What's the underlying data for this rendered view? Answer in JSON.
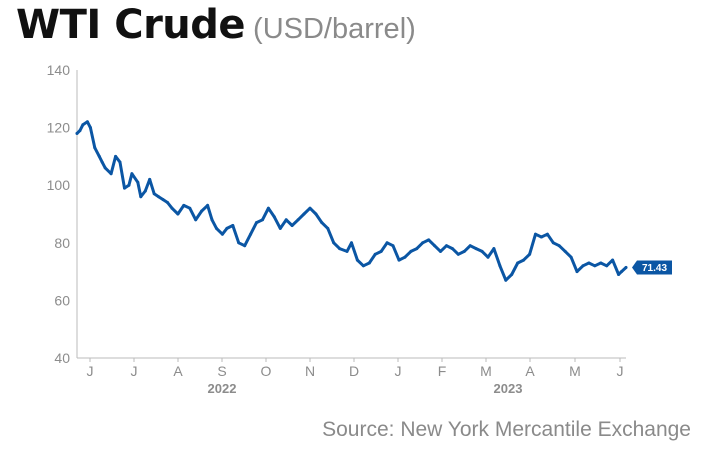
{
  "title": "WTI Crude",
  "subtitle": "(USD/barrel)",
  "source": "Source: New York Mercantile Exchange",
  "colors": {
    "line": "#0b56a4",
    "axis": "#bbbbbb",
    "text": "#8c8c8c",
    "title": "#111111"
  },
  "chart_data": {
    "type": "line",
    "title": "WTI Crude",
    "subtitle": "(USD/barrel)",
    "ylim": [
      40,
      140
    ],
    "yticks": [
      140,
      120,
      100,
      80,
      60,
      40
    ],
    "xticks": [
      "J",
      "J",
      "A",
      "S",
      "O",
      "N",
      "D",
      "J",
      "F",
      "M",
      "A",
      "M",
      "J"
    ],
    "year_labels": [
      "2022",
      "2023"
    ],
    "grid": false,
    "last_value_label": "71.43",
    "series": [
      {
        "x": [
          "2022-06-01",
          "2022-06-03",
          "2022-06-05",
          "2022-06-08",
          "2022-06-10",
          "2022-06-13",
          "2022-06-16",
          "2022-06-18",
          "2022-06-20",
          "2022-06-24",
          "2022-06-27",
          "2022-06-30",
          "2022-07-03",
          "2022-07-06",
          "2022-07-08",
          "2022-07-12",
          "2022-07-14",
          "2022-07-17",
          "2022-07-20",
          "2022-07-23",
          "2022-07-26",
          "2022-07-29",
          "2022-08-01",
          "2022-08-04",
          "2022-08-08",
          "2022-08-12",
          "2022-08-16",
          "2022-08-20",
          "2022-08-24",
          "2022-08-28",
          "2022-08-31",
          "2022-09-03",
          "2022-09-07",
          "2022-09-10",
          "2022-09-14",
          "2022-09-18",
          "2022-09-22",
          "2022-09-26",
          "2022-09-30",
          "2022-10-04",
          "2022-10-08",
          "2022-10-12",
          "2022-10-16",
          "2022-10-20",
          "2022-10-24",
          "2022-10-28",
          "2022-11-01",
          "2022-11-05",
          "2022-11-09",
          "2022-11-13",
          "2022-11-17",
          "2022-11-21",
          "2022-11-25",
          "2022-11-30",
          "2022-12-03",
          "2022-12-07",
          "2022-12-11",
          "2022-12-15",
          "2022-12-19",
          "2022-12-23",
          "2022-12-27",
          "2022-12-31",
          "2023-01-04",
          "2023-01-08",
          "2023-01-12",
          "2023-01-16",
          "2023-01-20",
          "2023-01-24",
          "2023-01-28",
          "2023-02-01",
          "2023-02-05",
          "2023-02-09",
          "2023-02-13",
          "2023-02-17",
          "2023-02-21",
          "2023-02-25",
          "2023-03-01",
          "2023-03-05",
          "2023-03-09",
          "2023-03-13",
          "2023-03-17",
          "2023-03-21",
          "2023-03-25",
          "2023-03-29",
          "2023-04-02",
          "2023-04-06",
          "2023-04-10",
          "2023-04-14",
          "2023-04-18",
          "2023-04-22",
          "2023-04-26",
          "2023-04-30",
          "2023-05-04",
          "2023-05-08",
          "2023-05-12",
          "2023-05-16",
          "2023-05-20",
          "2023-05-24",
          "2023-05-28",
          "2023-06-01",
          "2023-06-03",
          "2023-06-06"
        ],
        "y": [
          118,
          119,
          121,
          122,
          120,
          113,
          110,
          108,
          106,
          104,
          110,
          108,
          99,
          100,
          104,
          101,
          96,
          98,
          102,
          97,
          96,
          95,
          94,
          92,
          90,
          93,
          92,
          88,
          91,
          93,
          88,
          85,
          83,
          85,
          86,
          80,
          79,
          83,
          87,
          88,
          92,
          89,
          85,
          88,
          86,
          88,
          90,
          92,
          90,
          87,
          85,
          80,
          78,
          77,
          80,
          74,
          72,
          73,
          76,
          77,
          80,
          79,
          74,
          75,
          77,
          78,
          80,
          81,
          79,
          77,
          79,
          78,
          76,
          77,
          79,
          78,
          77,
          75,
          78,
          72,
          67,
          69,
          73,
          74,
          76,
          83,
          82,
          83,
          80,
          79,
          77,
          75,
          70,
          72,
          73,
          72,
          73,
          72,
          74,
          69,
          70,
          71.43
        ]
      }
    ]
  }
}
